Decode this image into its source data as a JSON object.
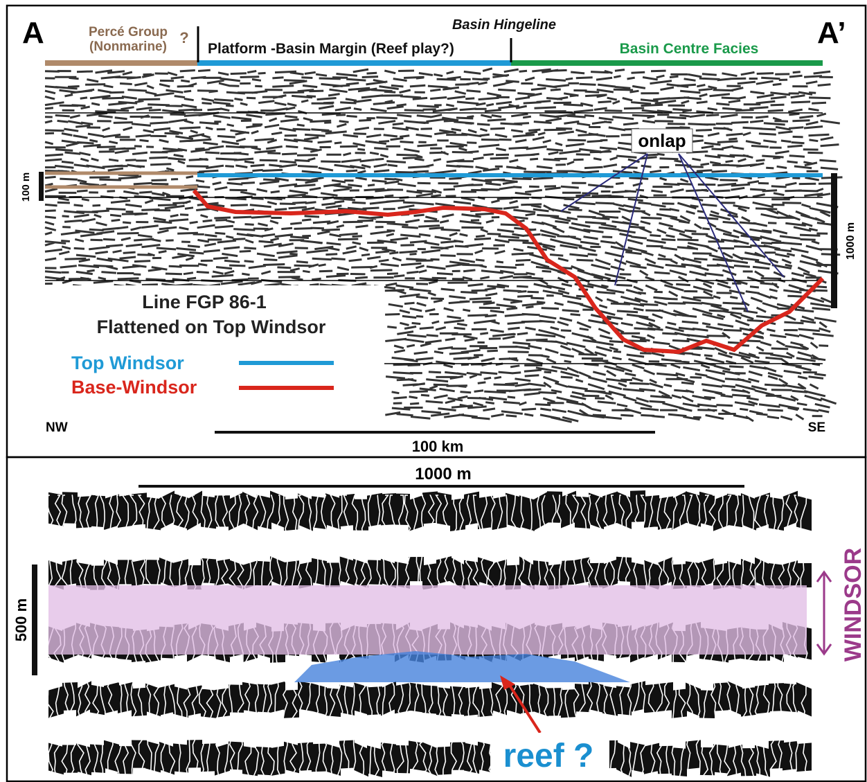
{
  "top_panel": {
    "left_label": "A",
    "right_label": "A’",
    "hingeline": "Basin Hingeline",
    "zones": [
      {
        "label": "Percé Group",
        "label2": "(Nonmarine)",
        "query": "?"
      },
      {
        "label": "Platform -Basin Margin (Reef play?)"
      },
      {
        "label": "Basin Centre Facies"
      }
    ],
    "onlap": "onlap",
    "left_scale": "100 m",
    "right_scale": "1000 m",
    "legend": {
      "title": "Line FGP 86-1",
      "subtitle": "Flattened on Top Windsor",
      "items": [
        "Top Windsor",
        "Base-Windsor"
      ]
    },
    "left_end": "NW",
    "right_end": "SE",
    "distance_scale": "100 km"
  },
  "bottom_panel": {
    "top_scale": "1000 m",
    "left_scale": "500 m",
    "unit_label": "WINDSOR",
    "callout": "reef ?"
  }
}
